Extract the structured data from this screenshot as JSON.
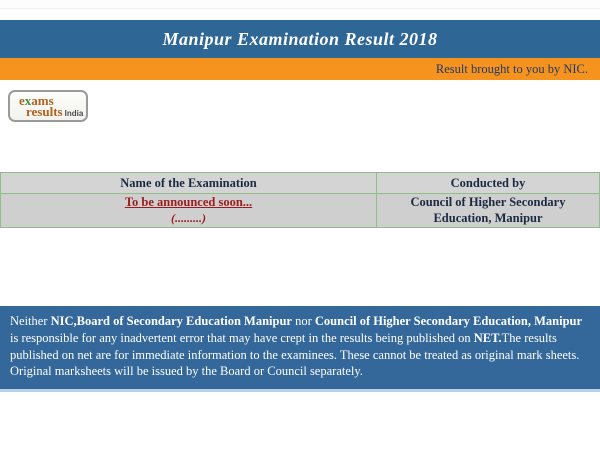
{
  "header": {
    "title": "Manipur Examination Result 2018",
    "credit": "Result brought to you by NIC.",
    "title_bar_color": "#2e6695",
    "credit_bar_color": "#f6921e"
  },
  "logo": {
    "e": "e",
    "x": "x",
    "ams": "ams",
    "results": "results",
    "india": "India"
  },
  "table": {
    "columns": [
      "Name of the Examination",
      "Conducted by"
    ],
    "rows": [
      {
        "exam_line1": "To be announced soon...",
        "exam_line2": "(.........)",
        "conducted_by": "Council of Higher Secondary Education, Manipur"
      }
    ]
  },
  "disclaimer": {
    "background": "#34689a",
    "segments": [
      {
        "text": "Neither ",
        "bold": false
      },
      {
        "text": "NIC,Board of Secondary Education Manipur",
        "bold": true
      },
      {
        "text": " nor ",
        "bold": false
      },
      {
        "text": "Council of Higher Secondary Education, Manipur",
        "bold": true
      },
      {
        "text": " is responsible for any inadvertent error that may have crept in the results being published on ",
        "bold": false
      },
      {
        "text": "NET.",
        "bold": true
      },
      {
        "text": "The results published on net are for immediate information to the examinees. These cannot be treated as original mark sheets. Original marksheets will be issued by the Board or Council separately.",
        "bold": false
      }
    ]
  },
  "colors": {
    "maroon": "#9b1c1c",
    "table_border": "#8fbf88",
    "table_header_bg": "#d4d4d4",
    "table_row_bg": "#cfcfcf",
    "text_dark": "#1b2a41"
  }
}
